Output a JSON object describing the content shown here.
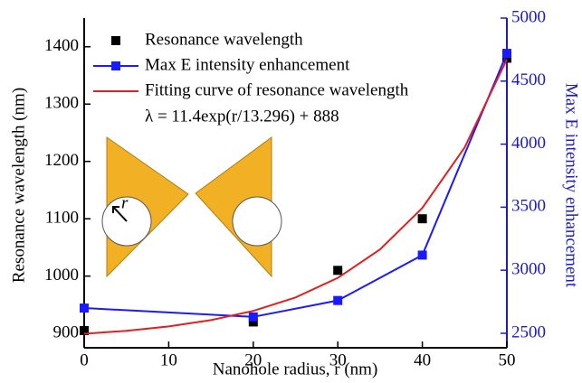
{
  "chart_data": {
    "type": "line",
    "xlabel": "Nanohole radius, r (nm)",
    "ylabel": "Resonance wavelength (nm)",
    "y2label": "Max E intensity enhancement",
    "xlim": [
      0,
      50
    ],
    "xticks": [
      0,
      10,
      20,
      30,
      40,
      50
    ],
    "ylim": [
      875,
      1450
    ],
    "yticks": [
      900,
      1000,
      1100,
      1200,
      1300,
      1400
    ],
    "y2lim": [
      2385,
      5000
    ],
    "y2ticks": [
      2500,
      3000,
      3500,
      4000,
      4500,
      5000
    ],
    "y2color": "#1a1acc",
    "series": [
      {
        "name": "Resonance wavelength",
        "color": "#000000",
        "style": "markers",
        "x": [
          0,
          20,
          30,
          40,
          50
        ],
        "values": [
          905,
          920,
          1010,
          1100,
          1380
        ]
      },
      {
        "name": "Max E intensity enhancement",
        "color": "#1a1aff",
        "style": "line-markers",
        "axis": "y2",
        "x": [
          0,
          20,
          30,
          40,
          50
        ],
        "values": [
          2700,
          2630,
          2760,
          3120,
          4720
        ]
      },
      {
        "name": "Fitting curve of resonance wavelength",
        "color": "#e02020",
        "style": "line",
        "x": [
          0,
          5,
          10,
          15,
          20,
          25,
          30,
          35,
          40,
          45,
          50
        ],
        "values": [
          899.4,
          904.6,
          912.2,
          923.2,
          939.3,
          962.7,
          996.8,
          1046.5,
          1118.9,
          1224.2,
          1378.1
        ]
      }
    ],
    "annotations": [
      "λ = 11.4exp(r/13.296) + 888",
      "r"
    ]
  }
}
